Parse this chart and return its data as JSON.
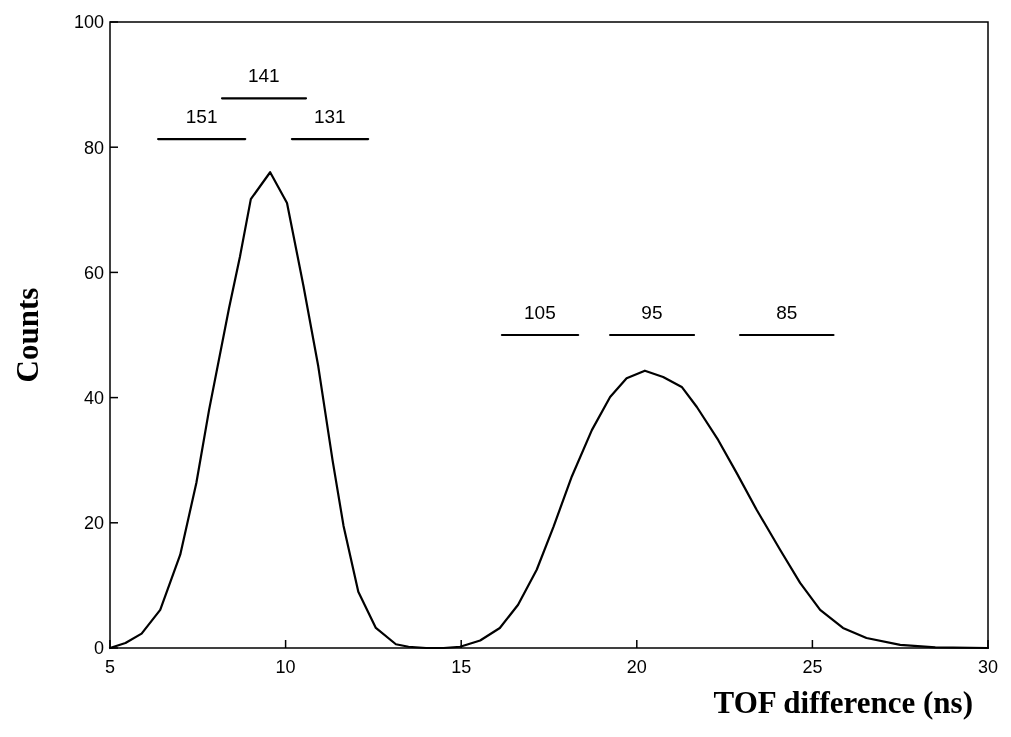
{
  "chart_data": {
    "type": "line",
    "xlabel": "TOF difference (ns)",
    "ylabel": "Counts",
    "xlim": [
      5,
      30
    ],
    "ylim": [
      0,
      100
    ],
    "xticks": [
      5,
      10,
      15,
      20,
      25,
      30
    ],
    "yticks": [
      0,
      20,
      40,
      60,
      80,
      100
    ],
    "grid": false,
    "marker": "none",
    "line_style": "solid",
    "series": [
      {
        "color": "#000000",
        "x": [
          5,
          5.44,
          5.9,
          6.43,
          7.0,
          7.46,
          7.82,
          8.39,
          8.7,
          9.01,
          9.56,
          10.04,
          10.51,
          10.93,
          11.34,
          11.65,
          12.07,
          12.57,
          13.14,
          13.5,
          14.0,
          14.5,
          14.97,
          15.54,
          16.1,
          16.62,
          17.15,
          17.63,
          18.15,
          18.72,
          19.24,
          19.71,
          20.23,
          20.75,
          21.28,
          21.71,
          22.32,
          22.85,
          23.42,
          24.08,
          24.65,
          25.22,
          25.87,
          26.54,
          27.5,
          28.5,
          30
        ],
        "values": [
          0,
          0.8,
          2.3,
          6.1,
          14.9,
          26.4,
          38,
          54.3,
          62.5,
          71.7,
          76,
          71.1,
          57.8,
          45,
          29.9,
          19.5,
          9,
          3.2,
          0.6,
          0.2,
          0,
          0,
          0.2,
          1.2,
          3.2,
          6.9,
          12.5,
          19.4,
          27.4,
          34.8,
          40.1,
          43.1,
          44.3,
          43.3,
          41.7,
          38.5,
          33.2,
          27.9,
          22,
          15.7,
          10.4,
          6.1,
          3.2,
          1.6,
          0.5,
          0.1,
          0
        ]
      },
      {
        "color": "#000000",
        "x": [
          6.37,
          8.85
        ],
        "values": [
          81.3,
          81.3
        ]
      },
      {
        "color": "#000000",
        "x": [
          8.19,
          10.58
        ],
        "values": [
          87.8,
          87.8
        ]
      },
      {
        "color": "#000000",
        "x": [
          10.18,
          12.35
        ],
        "values": [
          81.3,
          81.3
        ]
      },
      {
        "color": "#000000",
        "x": [
          16.16,
          18.33
        ],
        "values": [
          50,
          50
        ]
      },
      {
        "color": "#000000",
        "x": [
          19.24,
          21.63
        ],
        "values": [
          50,
          50
        ]
      },
      {
        "color": "#000000",
        "x": [
          22.94,
          25.6
        ],
        "values": [
          50,
          50
        ]
      }
    ],
    "annotations": [
      {
        "text": "151",
        "x": 7.61,
        "y": 81.3
      },
      {
        "text": "141",
        "x": 9.38,
        "y": 87.8
      },
      {
        "text": "131",
        "x": 11.26,
        "y": 81.3
      },
      {
        "text": "105",
        "x": 17.24,
        "y": 50
      },
      {
        "text": "95",
        "x": 20.43,
        "y": 50
      },
      {
        "text": "85",
        "x": 24.27,
        "y": 50
      }
    ]
  }
}
